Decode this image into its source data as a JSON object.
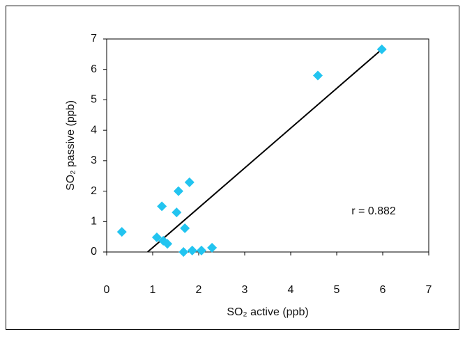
{
  "chart_data": {
    "type": "scatter",
    "xlabel": "SO₂ active (ppb)",
    "ylabel": "SO₂ passive (ppb)",
    "annotation": "r = 0.882",
    "series": [
      {
        "color": "#22c4f0",
        "x": [
          0.33,
          1.09,
          1.2,
          1.23,
          1.32,
          1.52,
          1.56,
          1.8,
          1.7,
          1.67,
          1.86,
          2.06,
          2.29,
          4.59,
          5.98
        ],
        "values": [
          0.66,
          0.48,
          1.5,
          0.37,
          0.27,
          1.3,
          2.0,
          2.29,
          0.78,
          0.0,
          0.05,
          0.05,
          0.14,
          5.8,
          6.66
        ]
      }
    ],
    "trendline": {
      "color": "#000000",
      "x": [
        0.89,
        5.98
      ],
      "values": [
        0,
        6.66
      ]
    },
    "xlim": [
      0,
      7
    ],
    "ylim": [
      0,
      7
    ],
    "xticks": [
      0,
      1,
      2,
      3,
      4,
      5,
      6,
      7
    ],
    "yticks": [
      0,
      1,
      2,
      3,
      4,
      5,
      6,
      7
    ]
  }
}
